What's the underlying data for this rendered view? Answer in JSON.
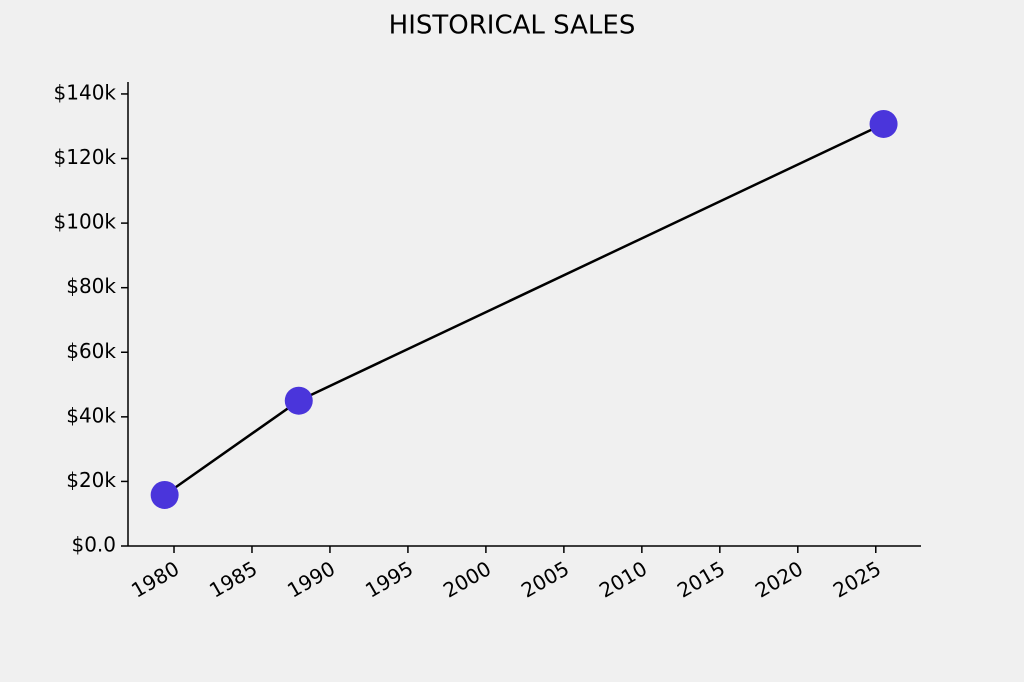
{
  "chart_data": {
    "type": "line",
    "title": "HISTORICAL SALES",
    "x": [
      1979.4,
      1988.0,
      2025.5
    ],
    "series": [
      {
        "name": "Sales",
        "color": "#4a35db",
        "line_color": "#000000",
        "values": [
          15800,
          45000,
          130700
        ]
      }
    ],
    "xlim": [
      1977.05,
      2027.9
    ],
    "xticks": [
      1980,
      1985,
      1990,
      1995,
      2000,
      2005,
      2010,
      2015,
      2020,
      2025
    ],
    "ylim": [
      0,
      143700
    ],
    "yticks": [
      {
        "value": 0,
        "label": "$0.0"
      },
      {
        "value": 20000,
        "label": "$20k"
      },
      {
        "value": 40000,
        "label": "$40k"
      },
      {
        "value": 60000,
        "label": "$60k"
      },
      {
        "value": 80000,
        "label": "$80k"
      },
      {
        "value": 100000,
        "label": "$100k"
      },
      {
        "value": 120000,
        "label": "$120k"
      },
      {
        "value": 140000,
        "label": "$140k"
      }
    ],
    "grid": false
  }
}
